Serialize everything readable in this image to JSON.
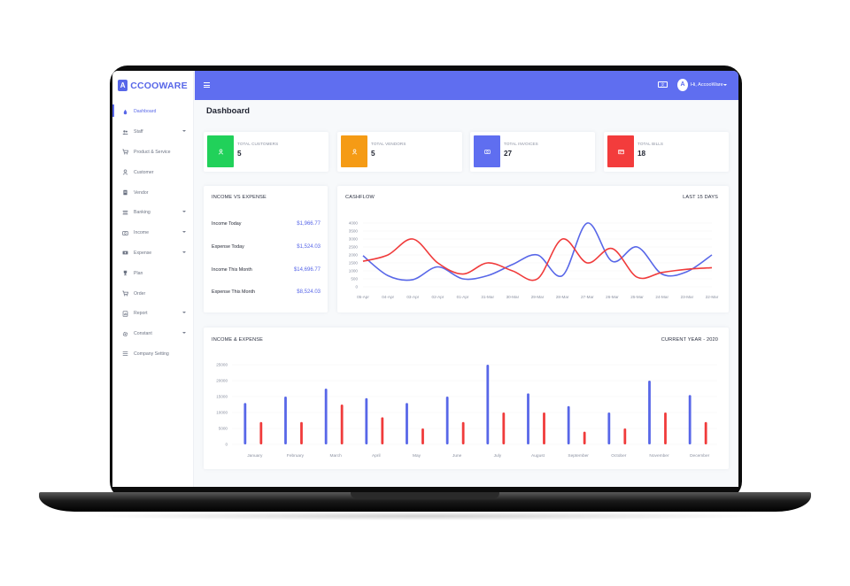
{
  "brand": {
    "logo_letter": "A",
    "name": "CCOOWARE"
  },
  "sidebar": {
    "items": [
      {
        "label": "Dashboard",
        "icon": "dashboard-icon",
        "active": true,
        "caret": false
      },
      {
        "label": "Staff",
        "icon": "users-icon",
        "active": false,
        "caret": true
      },
      {
        "label": "Product & Service",
        "icon": "cart-icon",
        "active": false,
        "caret": false
      },
      {
        "label": "Customer",
        "icon": "user-icon",
        "active": false,
        "caret": false
      },
      {
        "label": "Vendor",
        "icon": "document-icon",
        "active": false,
        "caret": false
      },
      {
        "label": "Banking",
        "icon": "bank-icon",
        "active": false,
        "caret": true
      },
      {
        "label": "Income",
        "icon": "money-icon",
        "active": false,
        "caret": true
      },
      {
        "label": "Expense",
        "icon": "receipt-icon",
        "active": false,
        "caret": true
      },
      {
        "label": "Plan",
        "icon": "trophy-icon",
        "active": false,
        "caret": false
      },
      {
        "label": "Order",
        "icon": "cart-icon",
        "active": false,
        "caret": false
      },
      {
        "label": "Report",
        "icon": "report-icon",
        "active": false,
        "caret": true
      },
      {
        "label": "Constant",
        "icon": "gear-icon",
        "active": false,
        "caret": true
      },
      {
        "label": "Company Setting",
        "icon": "list-icon",
        "active": false,
        "caret": false
      }
    ]
  },
  "header": {
    "language_icon": "language-icon",
    "avatar_letter": "A",
    "user_greeting": "Hi, AccooWare"
  },
  "page": {
    "title": "Dashboard"
  },
  "stats": [
    {
      "label": "TOTAL CUSTOMERS",
      "value": "5",
      "color": "#21d15a",
      "icon": "user-icon"
    },
    {
      "label": "TOTAL VENDORS",
      "value": "5",
      "color": "#f59b15",
      "icon": "user-icon"
    },
    {
      "label": "TOTAL INVOICES",
      "value": "27",
      "color": "#5f6ef0",
      "icon": "money-icon"
    },
    {
      "label": "TOTAL BILLS",
      "value": "18",
      "color": "#f33c3c",
      "icon": "wallet-icon"
    }
  ],
  "income_vs_expense": {
    "title": "INCOME VS EXPENSE",
    "rows": [
      {
        "label": "Income Today",
        "value": "$1,966.77"
      },
      {
        "label": "Expense Today",
        "value": "$1,524.03"
      },
      {
        "label": "Income This Month",
        "value": "$14,696.77"
      },
      {
        "label": "Expense This Month",
        "value": "$8,524.03"
      }
    ]
  },
  "cashflow_card": {
    "title": "CASHFLOW",
    "period": "LAST 15 DAYS"
  },
  "income_expense_card": {
    "title": "INCOME & EXPENSE",
    "period": "CURRENT YEAR - 2020"
  },
  "colors": {
    "income": "#5867e8",
    "expense": "#f03b3b",
    "accent": "#5f6ef0"
  },
  "chart_data": [
    {
      "type": "line",
      "x": [
        "05-Apr",
        "04-Apr",
        "03-Apr",
        "02-Apr",
        "01-Apr",
        "31-Mar",
        "30-Mar",
        "29-Mar",
        "28-Mar",
        "27-Mar",
        "26-Mar",
        "25-Mar",
        "24-Mar",
        "23-Mar",
        "22-Mar"
      ],
      "series": [
        {
          "color": "#5867e8",
          "values": [
            1950,
            700,
            450,
            1250,
            500,
            700,
            1400,
            2000,
            700,
            4000,
            1600,
            2500,
            800,
            950,
            2000
          ]
        },
        {
          "color": "#f03b3b",
          "values": [
            1600,
            2000,
            3000,
            1500,
            800,
            1500,
            1000,
            500,
            3000,
            1500,
            2400,
            600,
            900,
            1100,
            1200
          ]
        }
      ],
      "y_ticks": [
        "4000",
        "3500",
        "3000",
        "2500",
        "2000",
        "1500",
        "1000",
        "500",
        "0"
      ],
      "ylim": [
        0,
        4000
      ]
    },
    {
      "type": "bar",
      "categories": [
        "January",
        "February",
        "March",
        "April",
        "May",
        "June",
        "July",
        "August",
        "September",
        "October",
        "November",
        "December"
      ],
      "series": [
        {
          "color": "#5867e8",
          "values": [
            13000,
            15000,
            17500,
            14500,
            13000,
            15000,
            25000,
            16000,
            12000,
            10000,
            20000,
            15500
          ]
        },
        {
          "color": "#f03b3b",
          "values": [
            7000,
            7000,
            12500,
            8500,
            5000,
            7000,
            10000,
            10000,
            4000,
            5000,
            10000,
            7000
          ]
        }
      ],
      "y_ticks": [
        "25000",
        "20000",
        "15000",
        "10000",
        "5000",
        "0"
      ],
      "ylim": [
        0,
        25000
      ]
    }
  ]
}
